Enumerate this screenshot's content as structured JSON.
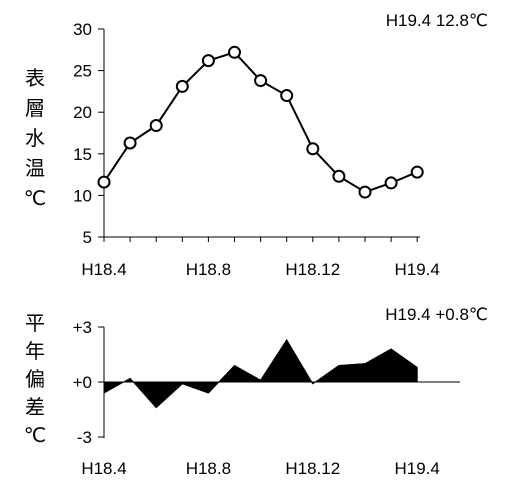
{
  "chart_data": [
    {
      "type": "line",
      "annotation": "H19.4   12.8℃",
      "ylabel": "表層水温℃",
      "ylim": [
        5,
        30
      ],
      "y_ticks": [
        "5",
        "10",
        "15",
        "20",
        "25",
        "30"
      ],
      "x_tick_labels": [
        "H18.4",
        "H18.8",
        "H18.12",
        "H19.4"
      ],
      "categories": [
        "H18.4",
        "H18.5",
        "H18.6",
        "H18.7",
        "H18.8",
        "H18.9",
        "H18.10",
        "H18.11",
        "H18.12",
        "H19.1",
        "H19.2",
        "H19.3",
        "H19.4"
      ],
      "series": [
        {
          "values": [
            11.6,
            16.3,
            18.4,
            23.1,
            26.2,
            27.2,
            23.8,
            22.0,
            15.6,
            12.3,
            10.4,
            11.5,
            12.8
          ]
        }
      ],
      "marker": "circle",
      "grid": false
    },
    {
      "type": "area",
      "annotation": "H19.4   +0.8℃",
      "ylabel": "平年偏差℃",
      "ylim": [
        -3,
        3
      ],
      "y_ticks": [
        "+3",
        "+0",
        "-3"
      ],
      "x_tick_labels": [
        "H18.4",
        "H18.8",
        "H18.12",
        "H19.4"
      ],
      "categories": [
        "H18.4",
        "H18.5",
        "H18.6",
        "H18.7",
        "H18.8",
        "H18.9",
        "H18.10",
        "H18.11",
        "H18.12",
        "H19.1",
        "H19.2",
        "H19.3",
        "H19.4"
      ],
      "series": [
        {
          "values": [
            -0.6,
            0.2,
            -1.4,
            -0.1,
            -0.6,
            0.9,
            0.1,
            2.3,
            -0.1,
            0.9,
            1.0,
            1.8,
            0.8
          ]
        }
      ],
      "fill_color": "#000000",
      "grid": false
    }
  ]
}
